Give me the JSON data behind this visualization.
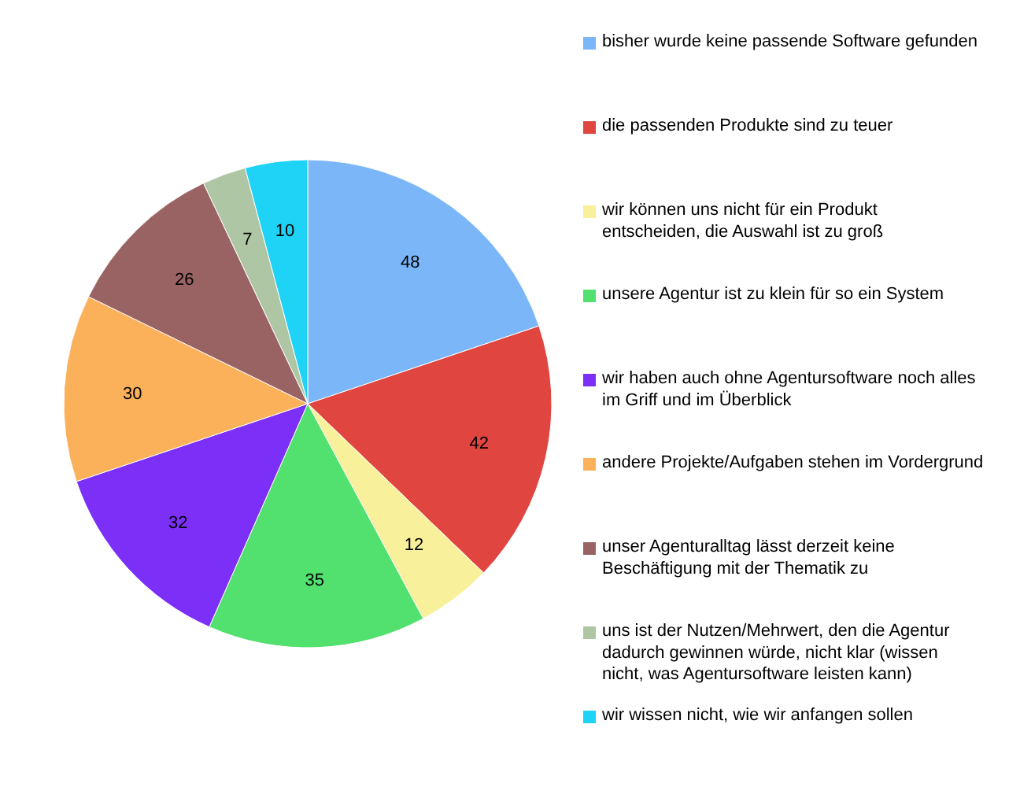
{
  "chart_data": {
    "type": "pie",
    "categories": [
      "bisher wurde keine passende Software gefunden",
      "die passenden Produkte sind zu teuer",
      "wir können uns nicht für ein Produkt entscheiden, die Auswahl ist zu groß",
      "unsere Agentur ist zu klein für so ein System",
      "wir haben auch ohne Agentursoftware noch alles im Griff und im Überblick",
      "andere Projekte/Aufgaben stehen im Vordergrund",
      "unser Agenturalltag lässt derzeit keine Beschäftigung mit der Thematik zu",
      "uns ist der Nutzen/Mehrwert, den die Agentur dadurch gewinnen würde, nicht klar (wissen nicht, was Agentursoftware leisten kann)",
      "wir wissen nicht, wie wir anfangen sollen"
    ],
    "values": [
      48,
      42,
      12,
      35,
      32,
      30,
      26,
      7,
      10
    ],
    "colors": [
      "#7ab6f8",
      "#e0453f",
      "#f8f09a",
      "#52e06e",
      "#7b2ff7",
      "#fbb05a",
      "#9a6363",
      "#aec6a3",
      "#1fd3f7"
    ],
    "data_labels": true,
    "legend": "right"
  }
}
